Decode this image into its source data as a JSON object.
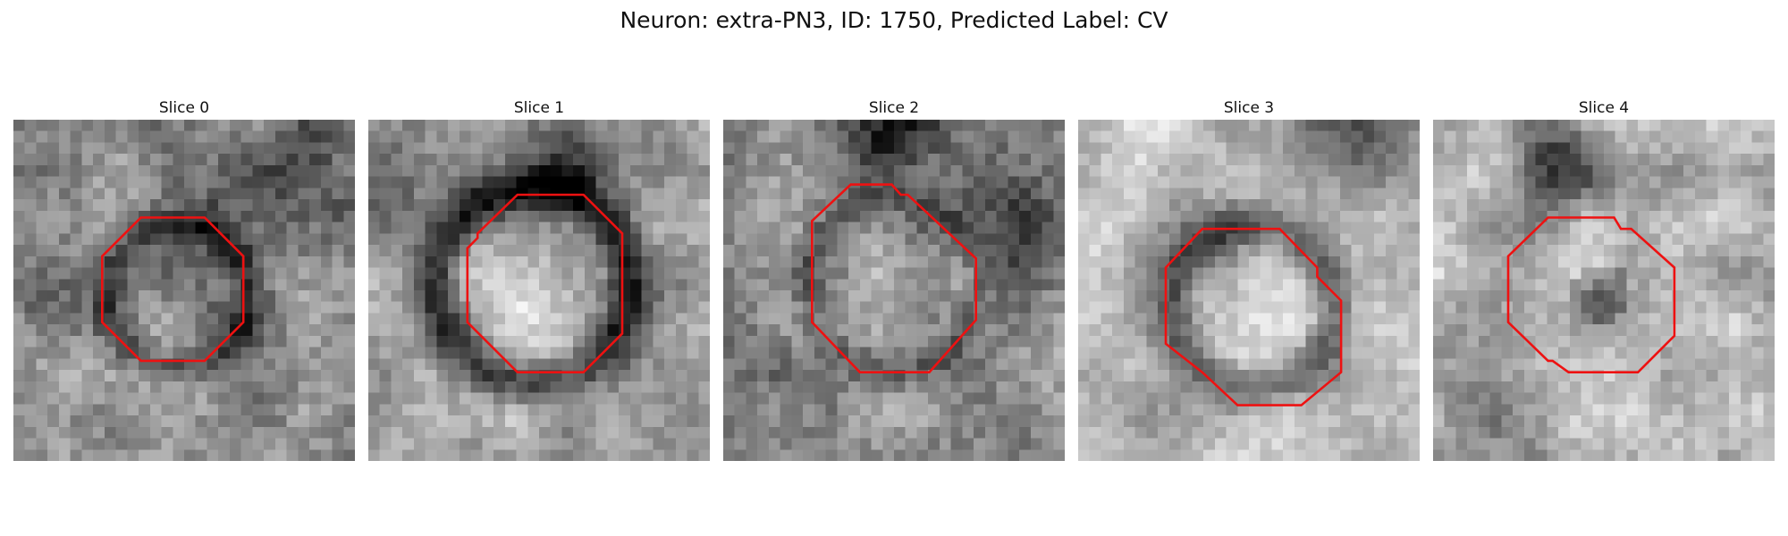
{
  "figure": {
    "title": "Neuron: extra-PN3, ID: 1750, Predicted Label: CV",
    "outline_color": "#ee1111",
    "colormap": "grayscale",
    "grid_size": 30
  },
  "slices": [
    {
      "label": "Slice 0",
      "brightness": "medium-light",
      "contents": "dark ring around a mottled gray interior"
    },
    {
      "label": "Slice 1",
      "brightness": "light",
      "contents": "bright circular center enclosed by a dark ring"
    },
    {
      "label": "Slice 2",
      "brightness": "medium",
      "contents": "mottled gray interior with a faint dark border"
    },
    {
      "label": "Slice 3",
      "brightness": "light",
      "contents": "bright center with a dark lower-left rim"
    },
    {
      "label": "Slice 4",
      "brightness": "light",
      "contents": "dark speckled center on a light background"
    }
  ]
}
